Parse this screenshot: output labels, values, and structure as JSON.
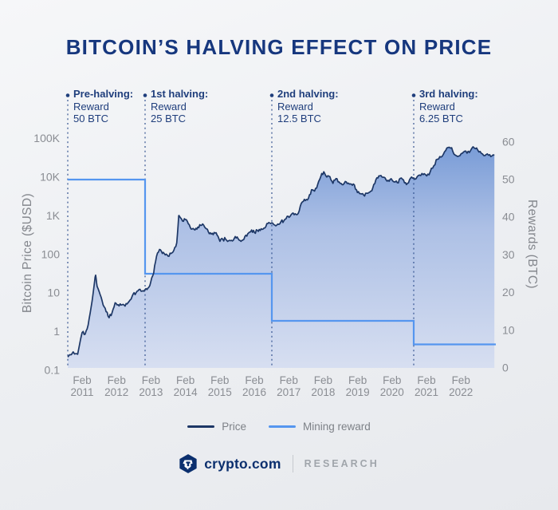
{
  "title": "BITCOIN’S HALVING EFFECT ON PRICE",
  "colors": {
    "navy_title": "#16377e",
    "annotation_text": "#1f3e7c",
    "price_line": "#1d3766",
    "area_top": "#6b92d3",
    "area_bottom": "#d6def1",
    "mining_reward_line": "#5596ef",
    "halving_dash_line": "#31508e",
    "axis_text_gray": "#8a8d93",
    "legend_text_gray": "#7d8187",
    "brand_navy": "#0b2f6e",
    "research_gray": "#a0a5ab"
  },
  "footer": {
    "brand": "crypto.com",
    "suffix": "RESEARCH"
  },
  "chart_data": {
    "type": "area",
    "title": "BITCOIN’S HALVING EFFECT ON PRICE",
    "grid": false,
    "y_left": {
      "label": "Bitcoin Price ($USD)",
      "scale": "log",
      "range": [
        0.1,
        100000
      ],
      "tick_labels": [
        "100K",
        "10K",
        "1K",
        "100",
        "10",
        "1",
        "0.1"
      ],
      "tick_values": [
        100000,
        10000,
        1000,
        100,
        10,
        1,
        0.1
      ]
    },
    "y_right": {
      "label": "Rewards (BTC)",
      "scale": "linear",
      "range": [
        0,
        60
      ],
      "tick_values": [
        60,
        50,
        40,
        30,
        20,
        10,
        0
      ]
    },
    "x": {
      "tick_month": "Feb",
      "tick_years": [
        "2011",
        "2012",
        "2013",
        "2014",
        "2015",
        "2016",
        "2017",
        "2018",
        "2019",
        "2020",
        "2021",
        "2022"
      ],
      "t_start": -0.4,
      "t_end": 11.2
    },
    "halvings": [
      {
        "label": "Pre-halving:",
        "line1": "Reward",
        "line2": "50 BTC",
        "reward": 50,
        "t": -0.4
      },
      {
        "label": "1st halving:",
        "line1": "Reward",
        "line2": "25 BTC",
        "reward": 25,
        "t": 1.75
      },
      {
        "label": "2nd halving:",
        "line1": "Reward",
        "line2": "12.5 BTC",
        "reward": 12.5,
        "t": 5.42
      },
      {
        "label": "3rd halving:",
        "line1": "Reward",
        "line2": "6.25 BTC",
        "reward": 6.25,
        "t": 9.28
      }
    ],
    "legend": [
      {
        "label": "Price",
        "color": "#1d3766"
      },
      {
        "label": "Mining reward",
        "color": "#5596ef"
      }
    ],
    "price_series": {
      "name": "Price",
      "unit": "$USD, log scale, months since Feb 2011",
      "points": [
        [
          -4.8,
          0.22
        ],
        [
          -3,
          0.3
        ],
        [
          -1.5,
          0.26
        ],
        [
          0,
          0.95
        ],
        [
          1,
          0.86
        ],
        [
          2,
          1.5
        ],
        [
          3,
          4.3
        ],
        [
          4,
          16
        ],
        [
          4.5,
          29
        ],
        [
          5,
          15
        ],
        [
          6,
          9.2
        ],
        [
          7,
          4.9
        ],
        [
          8,
          3.3
        ],
        [
          9,
          2.3
        ],
        [
          10,
          3.1
        ],
        [
          11,
          5.6
        ],
        [
          12,
          5
        ],
        [
          13,
          4.9
        ],
        [
          14,
          4.9
        ],
        [
          15,
          5.2
        ],
        [
          16,
          6.6
        ],
        [
          17,
          9.4
        ],
        [
          18,
          10.2
        ],
        [
          19,
          12.4
        ],
        [
          20,
          11.2
        ],
        [
          21,
          12.4
        ],
        [
          22,
          13.4
        ],
        [
          23,
          19.7
        ],
        [
          24,
          33
        ],
        [
          25,
          90
        ],
        [
          26,
          135
        ],
        [
          27,
          106
        ],
        [
          28,
          97
        ],
        [
          29,
          90
        ],
        [
          30,
          106
        ],
        [
          31,
          128
        ],
        [
          32,
          198
        ],
        [
          32.7,
          1010
        ],
        [
          33,
          960
        ],
        [
          34,
          735
        ],
        [
          35,
          795
        ],
        [
          36,
          625
        ],
        [
          37,
          455
        ],
        [
          38,
          445
        ],
        [
          39,
          450
        ],
        [
          40,
          590
        ],
        [
          41,
          615
        ],
        [
          42,
          480
        ],
        [
          43,
          382
        ],
        [
          44,
          338
        ],
        [
          45,
          370
        ],
        [
          46,
          318
        ],
        [
          47,
          218
        ],
        [
          48,
          246
        ],
        [
          49,
          247
        ],
        [
          50,
          226
        ],
        [
          51,
          232
        ],
        [
          52,
          262
        ],
        [
          53,
          284
        ],
        [
          54,
          230
        ],
        [
          55,
          237
        ],
        [
          56,
          314
        ],
        [
          57,
          362
        ],
        [
          58,
          430
        ],
        [
          59,
          370
        ],
        [
          60,
          422
        ],
        [
          61,
          417
        ],
        [
          62,
          452
        ],
        [
          63,
          532
        ],
        [
          64,
          672
        ],
        [
          65,
          657
        ],
        [
          66,
          577
        ],
        [
          67,
          612
        ],
        [
          68,
          702
        ],
        [
          69,
          747
        ],
        [
          70,
          963
        ],
        [
          71,
          967
        ],
        [
          72,
          1180
        ],
        [
          73,
          1072
        ],
        [
          74,
          1348
        ],
        [
          75,
          2290
        ],
        [
          76,
          2480
        ],
        [
          77,
          2860
        ],
        [
          78,
          4730
        ],
        [
          79,
          4340
        ],
        [
          80,
          6470
        ],
        [
          81,
          10200
        ],
        [
          82,
          13850
        ],
        [
          83,
          10100
        ],
        [
          84,
          10300
        ],
        [
          85,
          6940
        ],
        [
          86,
          9240
        ],
        [
          87,
          7500
        ],
        [
          88,
          6400
        ],
        [
          89,
          7730
        ],
        [
          90,
          7040
        ],
        [
          91,
          6620
        ],
        [
          92,
          6300
        ],
        [
          93,
          4020
        ],
        [
          94,
          3740
        ],
        [
          95,
          3460
        ],
        [
          96,
          3850
        ],
        [
          97,
          4100
        ],
        [
          98,
          5320
        ],
        [
          99,
          8560
        ],
        [
          100,
          10800
        ],
        [
          101,
          10080
        ],
        [
          102,
          9630
        ],
        [
          103,
          8300
        ],
        [
          104,
          9150
        ],
        [
          105,
          7550
        ],
        [
          106,
          7200
        ],
        [
          107,
          9350
        ],
        [
          108,
          8550
        ],
        [
          109,
          6440
        ],
        [
          110,
          8620
        ],
        [
          111,
          9450
        ],
        [
          112,
          9140
        ],
        [
          113,
          11350
        ],
        [
          114,
          11650
        ],
        [
          115,
          10780
        ],
        [
          116,
          13800
        ],
        [
          117,
          19700
        ],
        [
          118,
          28990
        ],
        [
          119,
          33110
        ],
        [
          120,
          45160
        ],
        [
          121,
          58780
        ],
        [
          122,
          57750
        ],
        [
          123,
          37330
        ],
        [
          124,
          35040
        ],
        [
          125,
          41630
        ],
        [
          126,
          47160
        ],
        [
          127,
          43790
        ],
        [
          128,
          61320
        ],
        [
          129,
          57000
        ],
        [
          130,
          46210
        ],
        [
          131,
          36500
        ],
        [
          132,
          40200
        ],
        [
          133,
          34200
        ],
        [
          134,
          36800
        ]
      ]
    },
    "reward_series": {
      "name": "Mining reward",
      "unit": "BTC",
      "steps": [
        {
          "from_t": -0.4,
          "to_t": 1.75,
          "value": 50
        },
        {
          "from_t": 1.75,
          "to_t": 5.42,
          "value": 25
        },
        {
          "from_t": 5.42,
          "to_t": 9.28,
          "value": 12.5
        },
        {
          "from_t": 9.28,
          "to_t": 11.2,
          "value": 6.25
        }
      ]
    }
  }
}
